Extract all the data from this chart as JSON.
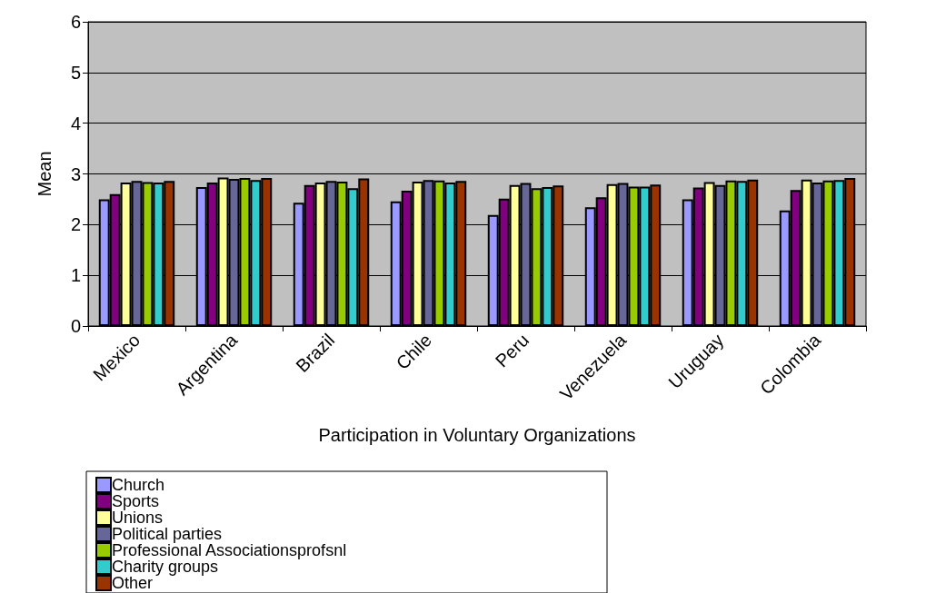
{
  "chart_data": {
    "type": "bar",
    "xlabel": "Participation in Voluntary Organizations",
    "ylabel": "Mean",
    "categories": [
      "Mexico",
      "Argentina",
      "Brazil",
      "Chile",
      "Peru",
      "Venezuela",
      "Uruguay",
      "Colombia"
    ],
    "series": [
      {
        "name": "Church",
        "color": "#9999ff",
        "values": [
          2.5,
          2.74,
          2.43,
          2.46,
          2.19,
          2.34,
          2.5,
          2.28
        ]
      },
      {
        "name": "Sports",
        "color": "#800080",
        "values": [
          2.6,
          2.83,
          2.78,
          2.67,
          2.51,
          2.54,
          2.73,
          2.68
        ]
      },
      {
        "name": "Unions",
        "color": "#ffff99",
        "values": [
          2.83,
          2.93,
          2.83,
          2.85,
          2.78,
          2.8,
          2.84,
          2.89
        ]
      },
      {
        "name": "Political parties",
        "color": "#666699",
        "values": [
          2.86,
          2.9,
          2.86,
          2.88,
          2.82,
          2.82,
          2.78,
          2.83
        ]
      },
      {
        "name": "Professional Associationsprofsnl",
        "color": "#99cc00",
        "values": [
          2.84,
          2.92,
          2.85,
          2.87,
          2.72,
          2.75,
          2.87,
          2.87
        ]
      },
      {
        "name": "Charity groups",
        "color": "#33cccc",
        "values": [
          2.83,
          2.88,
          2.72,
          2.83,
          2.74,
          2.75,
          2.86,
          2.88
        ]
      },
      {
        "name": "Other",
        "color": "#993300",
        "values": [
          2.86,
          2.92,
          2.91,
          2.86,
          2.77,
          2.79,
          2.89,
          2.92
        ]
      }
    ],
    "ylim": [
      0,
      6
    ],
    "yticks": [
      0,
      1,
      2,
      3,
      4,
      5,
      6
    ],
    "grid": "y",
    "legend": "bottom"
  }
}
